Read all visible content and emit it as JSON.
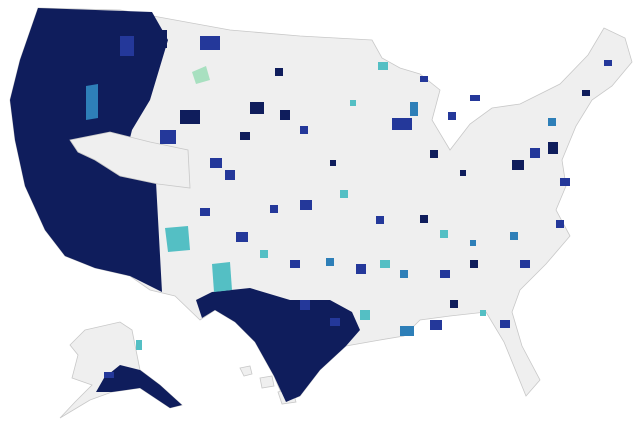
{
  "map": {
    "colors": [
      "#0f1d5c",
      "#24389a",
      "#2e7fb8",
      "#54bfc4",
      "#a8e0c0"
    ],
    "land": "#efefef",
    "border": "#c8c8c8",
    "background": "#ffffff"
  }
}
